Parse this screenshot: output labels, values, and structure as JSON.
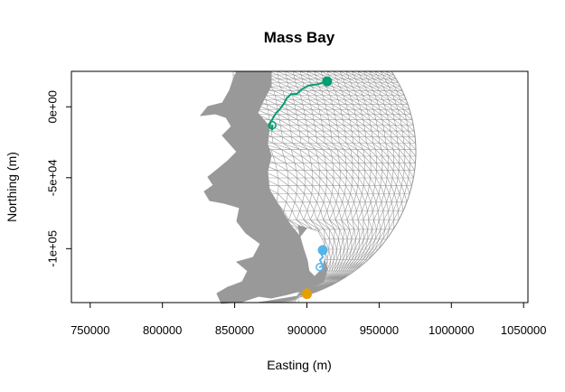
{
  "chart_data": {
    "type": "map",
    "title": "Mass Bay",
    "xlabel": "Easting (m)",
    "ylabel": "Northing (m)",
    "xlim": [
      737000,
      1053000
    ],
    "ylim": [
      -138000,
      25000
    ],
    "xticks": [
      {
        "value": 750000,
        "label": "750000"
      },
      {
        "value": 800000,
        "label": "800000"
      },
      {
        "value": 850000,
        "label": "850000"
      },
      {
        "value": 900000,
        "label": "900000"
      },
      {
        "value": 950000,
        "label": "950000"
      },
      {
        "value": 1000000,
        "label": "1000000"
      },
      {
        "value": 1050000,
        "label": "1050000"
      }
    ],
    "yticks": [
      {
        "value": 0,
        "label": "0e+00"
      },
      {
        "value": -50000,
        "label": "-5e+04"
      },
      {
        "value": -100000,
        "label": "-1e+05"
      }
    ],
    "colors": {
      "mesh": "#999999",
      "track_green": "#009E73",
      "track_blue": "#56B4E9",
      "track_orange": "#E69F00"
    },
    "series": [
      {
        "color": "#009E73",
        "x": [
          914000,
          908000,
          901000,
          896000,
          893000,
          889000,
          886000,
          884000,
          881000,
          879000,
          877000,
          875000,
          874000,
          876000,
          876000
        ],
        "y": [
          18000,
          16000,
          15000,
          12000,
          9000,
          9000,
          6000,
          2000,
          -2000,
          -4000,
          -7000,
          -11000,
          -14000,
          -16000,
          -13000
        ]
      },
      {
        "color": "#56B4E9",
        "x": [
          911000,
          910000,
          911000,
          909000,
          910000,
          911000,
          909000
        ],
        "y": [
          -101000,
          -104000,
          -106000,
          -108000,
          -110000,
          -112000,
          -113000
        ]
      },
      {
        "color": "#E69F00",
        "x": [
          900000,
          902000,
          898000,
          900000
        ],
        "y": [
          -132000,
          -131000,
          -133000,
          -131000
        ]
      }
    ]
  }
}
